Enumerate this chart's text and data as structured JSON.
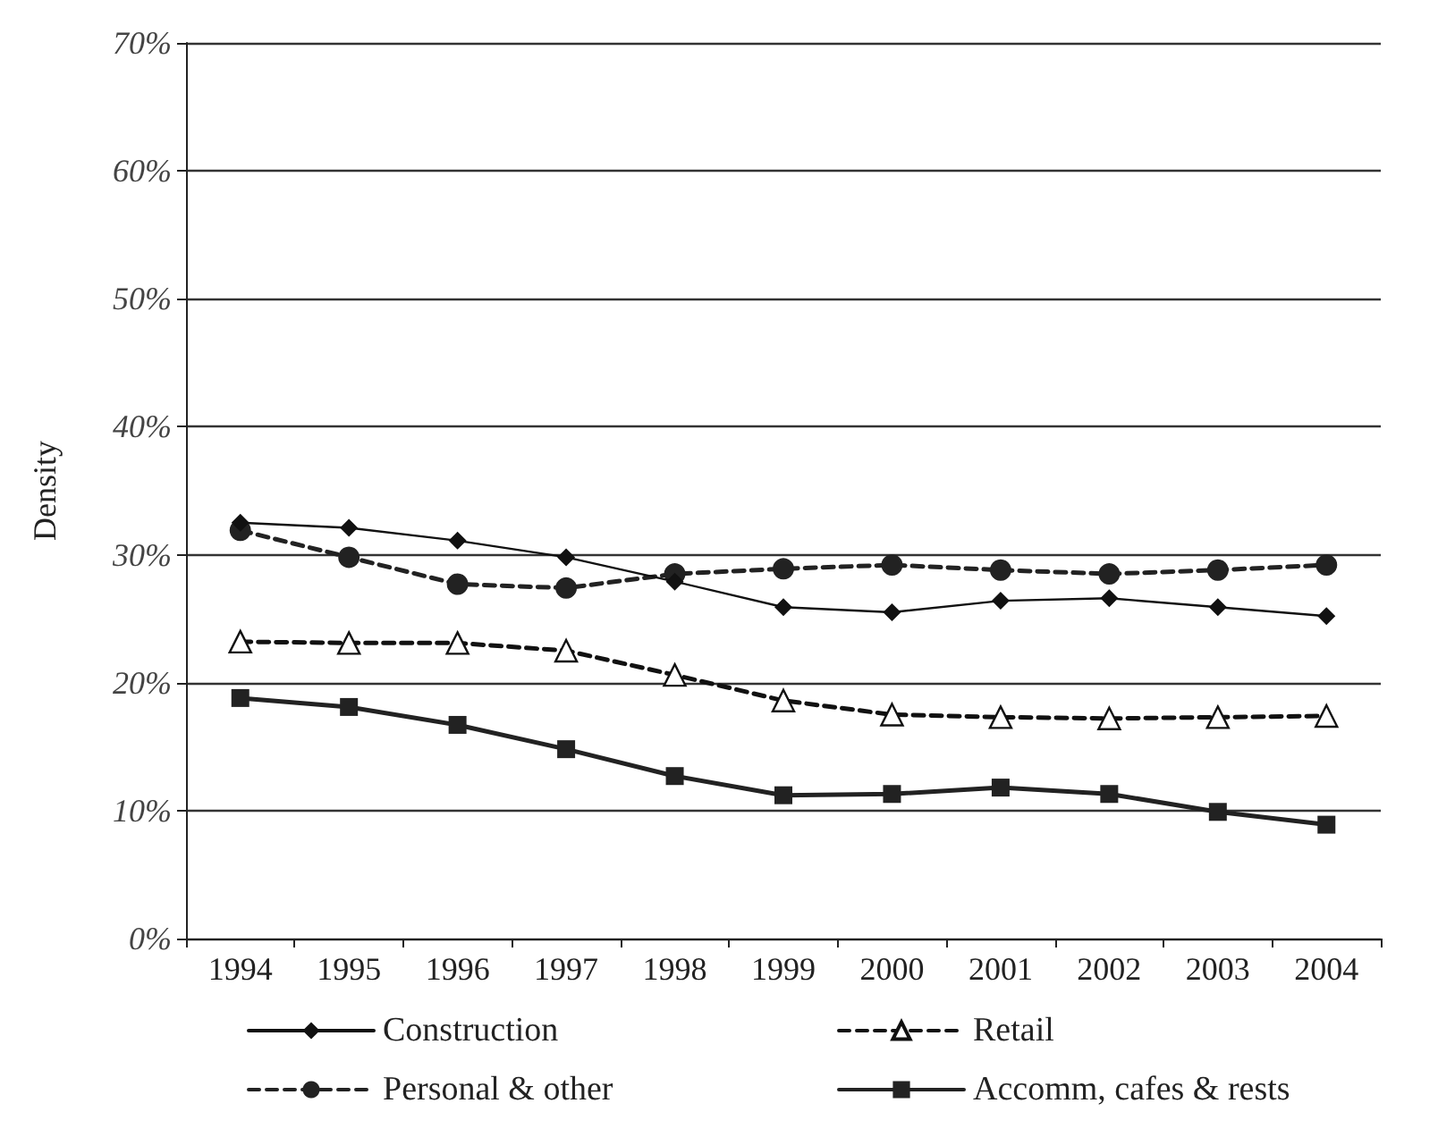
{
  "chart_data": {
    "type": "line",
    "ylabel": "Density",
    "categories": [
      "1994",
      "1995",
      "1996",
      "1997",
      "1998",
      "1999",
      "2000",
      "2001",
      "2002",
      "2003",
      "2004"
    ],
    "ylim": [
      0,
      70
    ],
    "yticks": [
      {
        "value": 0,
        "label": "0%"
      },
      {
        "value": 10,
        "label": "10%"
      },
      {
        "value": 20,
        "label": "20%"
      },
      {
        "value": 30,
        "label": "30%"
      },
      {
        "value": 40,
        "label": "40%"
      },
      {
        "value": 50,
        "label": "50%"
      },
      {
        "value": 60,
        "label": "60%"
      },
      {
        "value": 70,
        "label": "70%"
      }
    ],
    "grid": "y",
    "legend": "bottom",
    "series": [
      {
        "name": "Construction",
        "color": "#111111",
        "marker": "diamond",
        "line_style": "solid",
        "values": [
          32.5,
          32.1,
          31.1,
          29.8,
          27.9,
          25.9,
          25.5,
          26.4,
          26.6,
          25.9,
          25.2
        ]
      },
      {
        "name": "Retail",
        "color": "#111111",
        "marker": "triangle",
        "line_style": "dashed",
        "values": [
          23.2,
          23.1,
          23.1,
          22.5,
          20.6,
          18.6,
          17.5,
          17.3,
          17.2,
          17.3,
          17.4
        ]
      },
      {
        "name": "Personal & other",
        "color": "#222222",
        "marker": "circle",
        "line_style": "dashed",
        "values": [
          31.9,
          29.8,
          27.7,
          27.4,
          28.5,
          28.9,
          29.2,
          28.8,
          28.5,
          28.8,
          29.2
        ]
      },
      {
        "name": "Accomm, cafes & rests",
        "color": "#222222",
        "marker": "square",
        "line_style": "solid",
        "values": [
          18.8,
          18.1,
          16.7,
          14.8,
          12.7,
          11.2,
          11.3,
          11.8,
          11.3,
          9.9,
          8.9
        ]
      }
    ]
  }
}
